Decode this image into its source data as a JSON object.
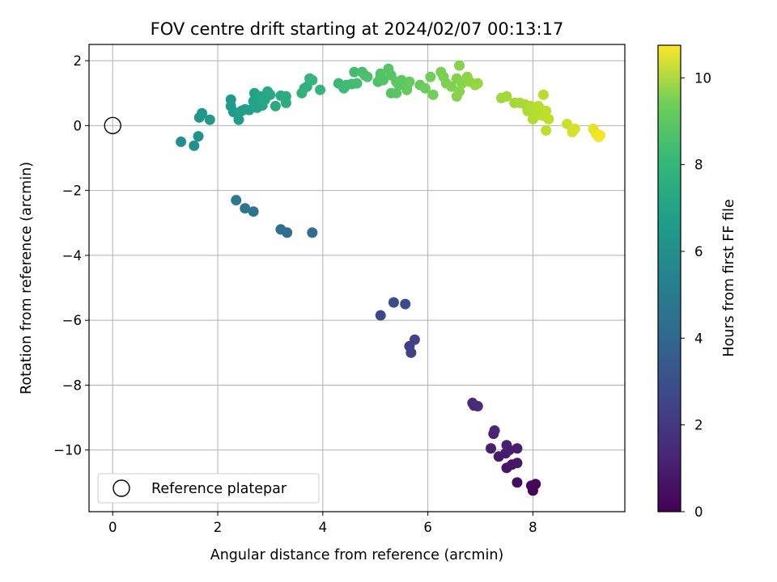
{
  "chart_data": {
    "type": "scatter",
    "title": "FOV centre drift starting at 2024/02/07 00:13:17",
    "xlabel": "Angular distance from reference (arcmin)",
    "ylabel": "Rotation from reference (arcmin)",
    "xlim": [
      -0.45,
      9.75
    ],
    "ylim": [
      -11.9,
      2.5
    ],
    "xticks": [
      0,
      2,
      4,
      6,
      8
    ],
    "yticks": [
      2,
      0,
      -2,
      -4,
      -6,
      -8,
      -10
    ],
    "grid": true,
    "colorbar": {
      "label": "Hours from first FF file",
      "colormap": "viridis",
      "range": [
        0,
        10.75
      ],
      "ticks": [
        0,
        2,
        4,
        6,
        8,
        10
      ]
    },
    "legend": {
      "placement": "lower-left",
      "entries": [
        "Reference platepar"
      ]
    },
    "reference_point": {
      "x": 0,
      "y": 0
    },
    "points": [
      {
        "x": 8.0,
        "y": -11.25,
        "c": 0.1
      },
      {
        "x": 8.05,
        "y": -11.05,
        "c": 0.2
      },
      {
        "x": 7.97,
        "y": -11.1,
        "c": 0.15
      },
      {
        "x": 7.7,
        "y": -11.0,
        "c": 0.4
      },
      {
        "x": 7.5,
        "y": -10.55,
        "c": 0.55
      },
      {
        "x": 7.6,
        "y": -10.45,
        "c": 0.6
      },
      {
        "x": 7.7,
        "y": -10.4,
        "c": 0.7
      },
      {
        "x": 7.35,
        "y": -10.2,
        "c": 0.75
      },
      {
        "x": 7.48,
        "y": -10.1,
        "c": 0.8
      },
      {
        "x": 7.55,
        "y": -10.0,
        "c": 0.85
      },
      {
        "x": 7.7,
        "y": -9.95,
        "c": 0.9
      },
      {
        "x": 7.2,
        "y": -9.95,
        "c": 0.95
      },
      {
        "x": 7.5,
        "y": -9.85,
        "c": 1.0
      },
      {
        "x": 7.25,
        "y": -9.5,
        "c": 1.05
      },
      {
        "x": 7.27,
        "y": -9.4,
        "c": 1.1
      },
      {
        "x": 6.85,
        "y": -8.55,
        "c": 1.25
      },
      {
        "x": 6.88,
        "y": -8.63,
        "c": 1.3
      },
      {
        "x": 6.95,
        "y": -8.65,
        "c": 1.35
      },
      {
        "x": 5.65,
        "y": -6.8,
        "c": 2.1
      },
      {
        "x": 5.68,
        "y": -7.0,
        "c": 2.15
      },
      {
        "x": 5.75,
        "y": -6.6,
        "c": 2.2
      },
      {
        "x": 5.1,
        "y": -5.85,
        "c": 2.35
      },
      {
        "x": 5.35,
        "y": -5.45,
        "c": 2.5
      },
      {
        "x": 5.57,
        "y": -5.5,
        "c": 2.6
      },
      {
        "x": 3.8,
        "y": -3.3,
        "c": 3.85
      },
      {
        "x": 3.32,
        "y": -3.3,
        "c": 3.9
      },
      {
        "x": 3.2,
        "y": -3.2,
        "c": 3.95
      },
      {
        "x": 2.68,
        "y": -2.65,
        "c": 4.1
      },
      {
        "x": 2.52,
        "y": -2.55,
        "c": 4.2
      },
      {
        "x": 2.35,
        "y": -2.3,
        "c": 4.35
      },
      {
        "x": 1.3,
        "y": -0.5,
        "c": 5.3
      },
      {
        "x": 1.55,
        "y": -0.62,
        "c": 5.4
      },
      {
        "x": 1.63,
        "y": -0.33,
        "c": 5.5
      },
      {
        "x": 1.65,
        "y": 0.25,
        "c": 5.6
      },
      {
        "x": 1.7,
        "y": 0.38,
        "c": 5.65
      },
      {
        "x": 1.85,
        "y": 0.18,
        "c": 5.7
      },
      {
        "x": 2.25,
        "y": 0.8,
        "c": 5.8
      },
      {
        "x": 2.25,
        "y": 0.6,
        "c": 5.85
      },
      {
        "x": 2.3,
        "y": 0.42,
        "c": 5.9
      },
      {
        "x": 2.4,
        "y": 0.18,
        "c": 5.95
      },
      {
        "x": 2.45,
        "y": 0.45,
        "c": 6.0
      },
      {
        "x": 2.52,
        "y": 0.5,
        "c": 6.05
      },
      {
        "x": 2.6,
        "y": 0.48,
        "c": 6.1
      },
      {
        "x": 2.68,
        "y": 0.75,
        "c": 6.15
      },
      {
        "x": 2.7,
        "y": 1.0,
        "c": 6.2
      },
      {
        "x": 2.75,
        "y": 0.55,
        "c": 6.25
      },
      {
        "x": 2.8,
        "y": 0.9,
        "c": 6.3
      },
      {
        "x": 2.85,
        "y": 0.62,
        "c": 6.35
      },
      {
        "x": 2.9,
        "y": 0.8,
        "c": 6.4
      },
      {
        "x": 2.95,
        "y": 1.05,
        "c": 6.45
      },
      {
        "x": 3.0,
        "y": 0.95,
        "c": 6.5
      },
      {
        "x": 3.1,
        "y": 0.6,
        "c": 6.55
      },
      {
        "x": 3.2,
        "y": 0.92,
        "c": 6.6
      },
      {
        "x": 3.3,
        "y": 0.7,
        "c": 6.65
      },
      {
        "x": 3.3,
        "y": 0.9,
        "c": 6.7
      },
      {
        "x": 3.6,
        "y": 1.0,
        "c": 6.85
      },
      {
        "x": 3.65,
        "y": 1.15,
        "c": 6.9
      },
      {
        "x": 3.7,
        "y": 1.2,
        "c": 6.95
      },
      {
        "x": 3.75,
        "y": 1.45,
        "c": 7.0
      },
      {
        "x": 3.8,
        "y": 1.4,
        "c": 7.05
      },
      {
        "x": 3.95,
        "y": 1.1,
        "c": 7.1
      },
      {
        "x": 4.3,
        "y": 1.3,
        "c": 7.25
      },
      {
        "x": 4.4,
        "y": 1.15,
        "c": 7.3
      },
      {
        "x": 4.45,
        "y": 1.25,
        "c": 7.35
      },
      {
        "x": 4.55,
        "y": 1.28,
        "c": 7.4
      },
      {
        "x": 4.6,
        "y": 1.65,
        "c": 7.45
      },
      {
        "x": 4.65,
        "y": 1.3,
        "c": 7.5
      },
      {
        "x": 4.75,
        "y": 1.65,
        "c": 7.55
      },
      {
        "x": 4.8,
        "y": 1.55,
        "c": 7.6
      },
      {
        "x": 4.85,
        "y": 1.5,
        "c": 7.65
      },
      {
        "x": 5.05,
        "y": 1.35,
        "c": 7.7
      },
      {
        "x": 5.1,
        "y": 1.6,
        "c": 7.75
      },
      {
        "x": 5.1,
        "y": 1.5,
        "c": 7.78
      },
      {
        "x": 5.15,
        "y": 1.4,
        "c": 7.8
      },
      {
        "x": 5.25,
        "y": 1.75,
        "c": 7.85
      },
      {
        "x": 5.3,
        "y": 1.55,
        "c": 7.88
      },
      {
        "x": 5.3,
        "y": 1.0,
        "c": 7.9
      },
      {
        "x": 5.4,
        "y": 1.35,
        "c": 7.92
      },
      {
        "x": 5.4,
        "y": 1.0,
        "c": 7.95
      },
      {
        "x": 5.45,
        "y": 1.25,
        "c": 7.98
      },
      {
        "x": 5.5,
        "y": 1.4,
        "c": 8.0
      },
      {
        "x": 5.6,
        "y": 1.2,
        "c": 8.05
      },
      {
        "x": 5.6,
        "y": 1.1,
        "c": 8.1
      },
      {
        "x": 5.65,
        "y": 1.35,
        "c": 8.15
      },
      {
        "x": 5.85,
        "y": 1.25,
        "c": 8.2
      },
      {
        "x": 5.95,
        "y": 1.15,
        "c": 8.3
      },
      {
        "x": 6.05,
        "y": 1.5,
        "c": 8.35
      },
      {
        "x": 6.1,
        "y": 0.95,
        "c": 8.4
      },
      {
        "x": 6.25,
        "y": 1.65,
        "c": 8.5
      },
      {
        "x": 6.3,
        "y": 1.5,
        "c": 8.55
      },
      {
        "x": 6.35,
        "y": 1.3,
        "c": 8.6
      },
      {
        "x": 6.45,
        "y": 1.2,
        "c": 8.65
      },
      {
        "x": 6.55,
        "y": 1.45,
        "c": 8.7
      },
      {
        "x": 6.55,
        "y": 0.9,
        "c": 8.72
      },
      {
        "x": 6.6,
        "y": 1.85,
        "c": 8.75
      },
      {
        "x": 6.6,
        "y": 1.05,
        "c": 8.78
      },
      {
        "x": 6.65,
        "y": 1.3,
        "c": 8.8
      },
      {
        "x": 6.75,
        "y": 1.5,
        "c": 8.85
      },
      {
        "x": 6.8,
        "y": 1.35,
        "c": 8.9
      },
      {
        "x": 6.9,
        "y": 1.25,
        "c": 8.95
      },
      {
        "x": 6.95,
        "y": 1.3,
        "c": 9.0
      },
      {
        "x": 7.4,
        "y": 0.85,
        "c": 9.15
      },
      {
        "x": 7.5,
        "y": 0.9,
        "c": 9.2
      },
      {
        "x": 7.65,
        "y": 0.7,
        "c": 9.25
      },
      {
        "x": 7.75,
        "y": 0.7,
        "c": 9.3
      },
      {
        "x": 7.85,
        "y": 0.65,
        "c": 9.35
      },
      {
        "x": 7.9,
        "y": 0.45,
        "c": 9.4
      },
      {
        "x": 7.95,
        "y": 0.6,
        "c": 9.42
      },
      {
        "x": 8.0,
        "y": 0.5,
        "c": 9.45
      },
      {
        "x": 8.0,
        "y": 0.2,
        "c": 9.48
      },
      {
        "x": 8.05,
        "y": 0.3,
        "c": 9.5
      },
      {
        "x": 8.1,
        "y": 0.6,
        "c": 9.52
      },
      {
        "x": 8.1,
        "y": 0.4,
        "c": 9.55
      },
      {
        "x": 8.15,
        "y": 0.5,
        "c": 9.58
      },
      {
        "x": 8.2,
        "y": 0.95,
        "c": 9.6
      },
      {
        "x": 8.2,
        "y": 0.3,
        "c": 9.62
      },
      {
        "x": 8.25,
        "y": 0.45,
        "c": 9.65
      },
      {
        "x": 8.3,
        "y": 0.2,
        "c": 9.68
      },
      {
        "x": 8.25,
        "y": -0.15,
        "c": 9.7
      },
      {
        "x": 8.65,
        "y": 0.05,
        "c": 9.9
      },
      {
        "x": 8.75,
        "y": -0.2,
        "c": 10.0
      },
      {
        "x": 8.8,
        "y": -0.1,
        "c": 10.05
      },
      {
        "x": 9.15,
        "y": -0.1,
        "c": 10.3
      },
      {
        "x": 9.2,
        "y": -0.25,
        "c": 10.4
      },
      {
        "x": 9.25,
        "y": -0.35,
        "c": 10.5
      },
      {
        "x": 9.28,
        "y": -0.3,
        "c": 10.6
      }
    ]
  }
}
